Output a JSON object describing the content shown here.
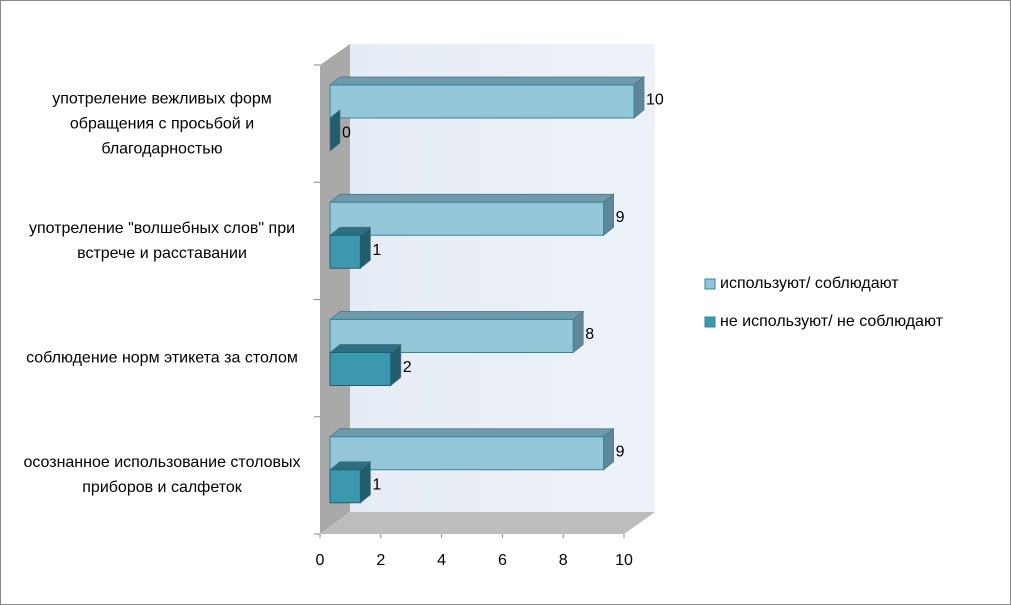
{
  "chart_data": {
    "type": "bar3d_horizontal",
    "categories": [
      "употреление вежливых форм обращения с просьбой и благодарностью",
      "употреление \"волшебных слов\" при встрече и расставании",
      "соблюдение норм этикета за столом",
      "осознанное использование столовых приборов и салфеток"
    ],
    "series": [
      {
        "name": "используют/ соблюдают",
        "color": "#93c6d6",
        "values": [
          10,
          9,
          8,
          9
        ]
      },
      {
        "name": "не используют/ не соблюдают",
        "color": "#3c98ae",
        "values": [
          0,
          1,
          2,
          1
        ]
      }
    ],
    "xlim": [
      0,
      10
    ],
    "xticks": [
      0,
      2,
      4,
      6,
      8,
      10
    ],
    "legend": "right"
  }
}
